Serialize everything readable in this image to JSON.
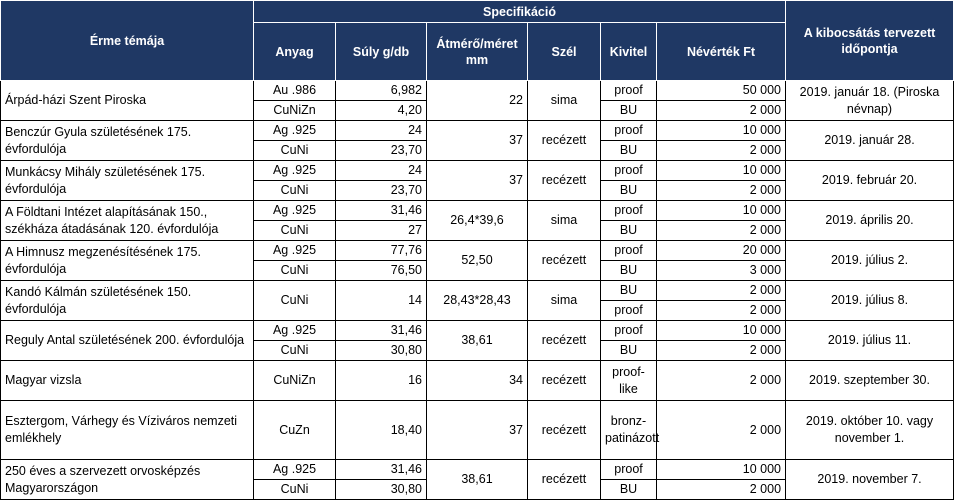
{
  "headers": {
    "theme": "Érme témája",
    "spec": "Specifikáció",
    "material": "Anyag",
    "weight": "Súly g/db",
    "diameter": "Átmérő/méret mm",
    "edge": "Szél",
    "finish": "Kivitel",
    "face_value": "Névérték Ft",
    "issue_date": "A kibocsátás tervezett időpontja"
  },
  "rows": [
    {
      "theme": "Árpád-házi Szent Piroska",
      "variants": [
        {
          "material": "Au .986",
          "weight": "6,982",
          "finish": "proof",
          "face_value": "50 000"
        },
        {
          "material": "CuNiZn",
          "weight": "4,20",
          "finish": "BU",
          "face_value": "2 000"
        }
      ],
      "diameter": "22",
      "edge": "sima",
      "issue_date": "2019. január 18. (Piroska névnap)"
    },
    {
      "theme": "Benczúr Gyula születésének 175. évfordulója",
      "variants": [
        {
          "material": "Ag .925",
          "weight": "24",
          "finish": "proof",
          "face_value": "10 000"
        },
        {
          "material": "CuNi",
          "weight": "23,70",
          "finish": "BU",
          "face_value": "2 000"
        }
      ],
      "diameter": "37",
      "edge": "recézett",
      "issue_date": "2019. január 28."
    },
    {
      "theme": "Munkácsy Mihály  születésének 175. évfordulója",
      "variants": [
        {
          "material": "Ag .925",
          "weight": "24",
          "finish": "proof",
          "face_value": "10 000"
        },
        {
          "material": "CuNi",
          "weight": "23,70",
          "finish": "BU",
          "face_value": "2 000"
        }
      ],
      "diameter": "37",
      "edge": "recézett",
      "issue_date": "2019. február 20."
    },
    {
      "theme": "A Földtani Intézet alapításának 150., székháza átadásának 120. évfordulója",
      "variants": [
        {
          "material": "Ag .925",
          "weight": "31,46",
          "finish": "proof",
          "face_value": "10 000"
        },
        {
          "material": "CuNi",
          "weight": "27",
          "finish": "BU",
          "face_value": "2 000"
        }
      ],
      "diameter": "26,4*39,6",
      "edge": "sima",
      "issue_date": "2019. április 20."
    },
    {
      "theme": "A Himnusz megzenésítésének 175. évfordulója",
      "variants": [
        {
          "material": "Ag .925",
          "weight": "77,76",
          "finish": "proof",
          "face_value": "20 000"
        },
        {
          "material": "CuNi",
          "weight": "76,50",
          "finish": "BU",
          "face_value": "3 000"
        }
      ],
      "diameter": "52,50",
      "edge": "recézett",
      "issue_date": "2019. július 2."
    },
    {
      "theme": "Kandó Kálmán születésének 150. évfordulója",
      "material": "CuNi",
      "weight": "14",
      "finishes": [
        {
          "finish": "BU",
          "face_value": "2 000"
        },
        {
          "finish": "proof",
          "face_value": "2 000"
        }
      ],
      "diameter": "28,43*28,43",
      "edge": "sima",
      "issue_date": "2019. július 8."
    },
    {
      "theme": "Reguly Antal születésének 200. évfordulója",
      "variants": [
        {
          "material": "Ag .925",
          "weight": "31,46",
          "finish": "proof",
          "face_value": "10 000"
        },
        {
          "material": "CuNi",
          "weight": "30,80",
          "finish": "BU",
          "face_value": "2 000"
        }
      ],
      "diameter": "38,61",
      "edge": "recézett",
      "issue_date": "2019. július 11."
    },
    {
      "theme": "Magyar vizsla",
      "material": "CuNiZn",
      "weight": "16",
      "diameter": "34",
      "edge": "recézett",
      "finish": "proof-like",
      "face_value": "2 000",
      "issue_date": "2019. szeptember 30."
    },
    {
      "theme": "Esztergom, Várhegy és Víziváros nemzeti emlékhely",
      "material": "CuZn",
      "weight": "18,40",
      "diameter": "37",
      "edge": "recézett",
      "finish": "bronz-patinázott",
      "face_value": "2 000",
      "issue_date": "2019. október 10. vagy november 1."
    },
    {
      "theme": "250 éves a szervezett orvosképzés Magyarországon",
      "variants": [
        {
          "material": "Ag .925",
          "weight": "31,46",
          "finish": "proof",
          "face_value": "10 000"
        },
        {
          "material": "CuNi",
          "weight": "30,80",
          "finish": "BU",
          "face_value": "2 000"
        }
      ],
      "diameter": "38,61",
      "edge": "recézett",
      "issue_date": "2019. november 7."
    }
  ]
}
